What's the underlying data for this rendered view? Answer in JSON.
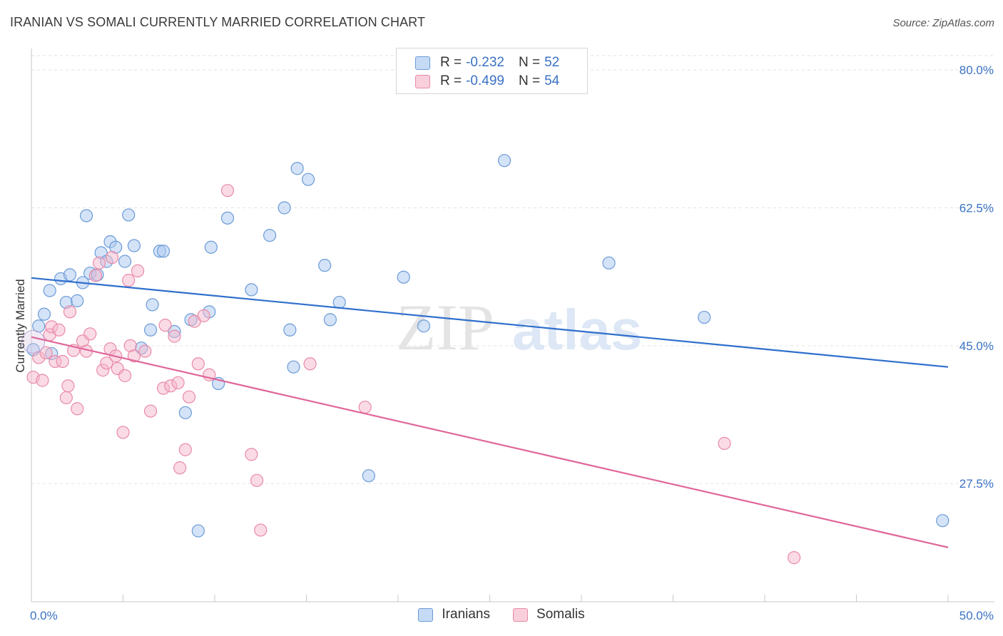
{
  "header": {
    "title": "IRANIAN VS SOMALI CURRENTLY MARRIED CORRELATION CHART",
    "source": "Source: ZipAtlas.com"
  },
  "watermark": {
    "zip": "ZIP",
    "atlas": "atlas"
  },
  "legend": {
    "rows": [
      {
        "r_label": "R =",
        "r_value": "-0.232",
        "n_label": "N =",
        "n_value": "52"
      },
      {
        "r_label": "R =",
        "r_value": "-0.499",
        "n_label": "N =",
        "n_value": "54"
      }
    ]
  },
  "colors": {
    "blue_fill": "#a9c8ef",
    "blue_stroke": "#6b9bd8",
    "blue_line": "#2f6fcc",
    "pink_fill": "#f6b8cb",
    "pink_stroke": "#e98aa8",
    "pink_line": "#e0679a",
    "tick": "#3a72c4",
    "grid": "#e2e2e2"
  },
  "chart_data": {
    "type": "scatter",
    "title": "IRANIAN VS SOMALI CURRENTLY MARRIED CORRELATION CHART",
    "xlabel": "",
    "ylabel": "Currently Married",
    "xlim": [
      0,
      50
    ],
    "ylim": [
      12.5,
      82
    ],
    "x_tick_labels": [
      "0.0%",
      "50.0%"
    ],
    "y_ticks": [
      27.5,
      45.0,
      62.5,
      80.0
    ],
    "y_tick_labels": [
      "27.5%",
      "45.0%",
      "62.5%",
      "80.0%"
    ],
    "legend_position": "bottom-center",
    "series": [
      {
        "name": "Iranians",
        "color": "#a9c8ef",
        "points": [
          [
            0.1,
            44.5
          ],
          [
            0.4,
            47.5
          ],
          [
            0.7,
            49.0
          ],
          [
            1.0,
            52.0
          ],
          [
            1.1,
            44.0
          ],
          [
            1.6,
            53.5
          ],
          [
            1.9,
            50.5
          ],
          [
            2.1,
            54.0
          ],
          [
            2.5,
            50.7
          ],
          [
            2.8,
            53.0
          ],
          [
            3.0,
            61.5
          ],
          [
            3.2,
            54.2
          ],
          [
            3.6,
            54.0
          ],
          [
            3.8,
            56.8
          ],
          [
            4.1,
            55.7
          ],
          [
            4.3,
            58.2
          ],
          [
            4.6,
            57.5
          ],
          [
            5.1,
            55.7
          ],
          [
            5.3,
            61.6
          ],
          [
            5.6,
            57.7
          ],
          [
            6.0,
            44.7
          ],
          [
            6.5,
            47.0
          ],
          [
            6.6,
            50.2
          ],
          [
            7.0,
            57.0
          ],
          [
            7.2,
            57.0
          ],
          [
            7.8,
            46.8
          ],
          [
            8.4,
            36.5
          ],
          [
            8.7,
            48.3
          ],
          [
            9.1,
            21.5
          ],
          [
            9.7,
            49.3
          ],
          [
            9.8,
            57.5
          ],
          [
            10.2,
            40.2
          ],
          [
            10.7,
            61.2
          ],
          [
            12.0,
            52.1
          ],
          [
            13.0,
            59.0
          ],
          [
            13.8,
            62.5
          ],
          [
            14.1,
            47.0
          ],
          [
            14.3,
            42.3
          ],
          [
            14.5,
            67.5
          ],
          [
            15.1,
            66.1
          ],
          [
            16.0,
            55.2
          ],
          [
            16.3,
            48.3
          ],
          [
            16.8,
            50.5
          ],
          [
            18.4,
            28.5
          ],
          [
            20.3,
            53.7
          ],
          [
            21.4,
            47.5
          ],
          [
            25.8,
            68.5
          ],
          [
            31.5,
            55.5
          ],
          [
            36.7,
            48.6
          ],
          [
            49.7,
            22.8
          ]
        ]
      },
      {
        "name": "Somalis",
        "color": "#f6b8cb",
        "points": [
          [
            0.1,
            41.0
          ],
          [
            0.4,
            43.5
          ],
          [
            0.6,
            40.6
          ],
          [
            0.8,
            44.1
          ],
          [
            1.0,
            46.4
          ],
          [
            1.1,
            47.4
          ],
          [
            1.3,
            43.0
          ],
          [
            1.5,
            47.0
          ],
          [
            1.7,
            43.0
          ],
          [
            1.9,
            38.4
          ],
          [
            2.0,
            39.9
          ],
          [
            2.1,
            49.3
          ],
          [
            2.3,
            44.4
          ],
          [
            2.5,
            37.0
          ],
          [
            2.8,
            45.6
          ],
          [
            3.0,
            44.3
          ],
          [
            3.2,
            46.5
          ],
          [
            3.5,
            53.9
          ],
          [
            3.7,
            55.5
          ],
          [
            3.9,
            41.9
          ],
          [
            4.1,
            42.8
          ],
          [
            4.3,
            44.6
          ],
          [
            4.4,
            56.2
          ],
          [
            4.6,
            43.7
          ],
          [
            4.7,
            42.1
          ],
          [
            5.0,
            34.0
          ],
          [
            5.1,
            41.2
          ],
          [
            5.3,
            53.3
          ],
          [
            5.4,
            45.0
          ],
          [
            5.6,
            43.7
          ],
          [
            5.8,
            54.5
          ],
          [
            6.2,
            44.3
          ],
          [
            6.5,
            36.7
          ],
          [
            7.2,
            39.6
          ],
          [
            7.3,
            47.6
          ],
          [
            7.6,
            39.9
          ],
          [
            7.8,
            46.2
          ],
          [
            8.0,
            40.3
          ],
          [
            8.1,
            29.5
          ],
          [
            8.4,
            31.8
          ],
          [
            8.6,
            38.5
          ],
          [
            8.9,
            48.1
          ],
          [
            9.1,
            42.7
          ],
          [
            9.4,
            48.8
          ],
          [
            9.7,
            41.3
          ],
          [
            10.7,
            64.7
          ],
          [
            12.0,
            31.2
          ],
          [
            12.3,
            27.9
          ],
          [
            12.5,
            21.6
          ],
          [
            15.2,
            42.7
          ],
          [
            18.2,
            37.2
          ],
          [
            37.8,
            32.6
          ],
          [
            41.6,
            18.1
          ]
        ]
      }
    ],
    "trend_lines": [
      {
        "series": "Iranians",
        "x": [
          0,
          50
        ],
        "y": [
          53.6,
          42.3
        ]
      },
      {
        "series": "Somalis",
        "x": [
          0,
          50
        ],
        "y": [
          46.1,
          19.4
        ]
      }
    ]
  },
  "bottom_legend": {
    "items": [
      "Iranians",
      "Somalis"
    ]
  }
}
